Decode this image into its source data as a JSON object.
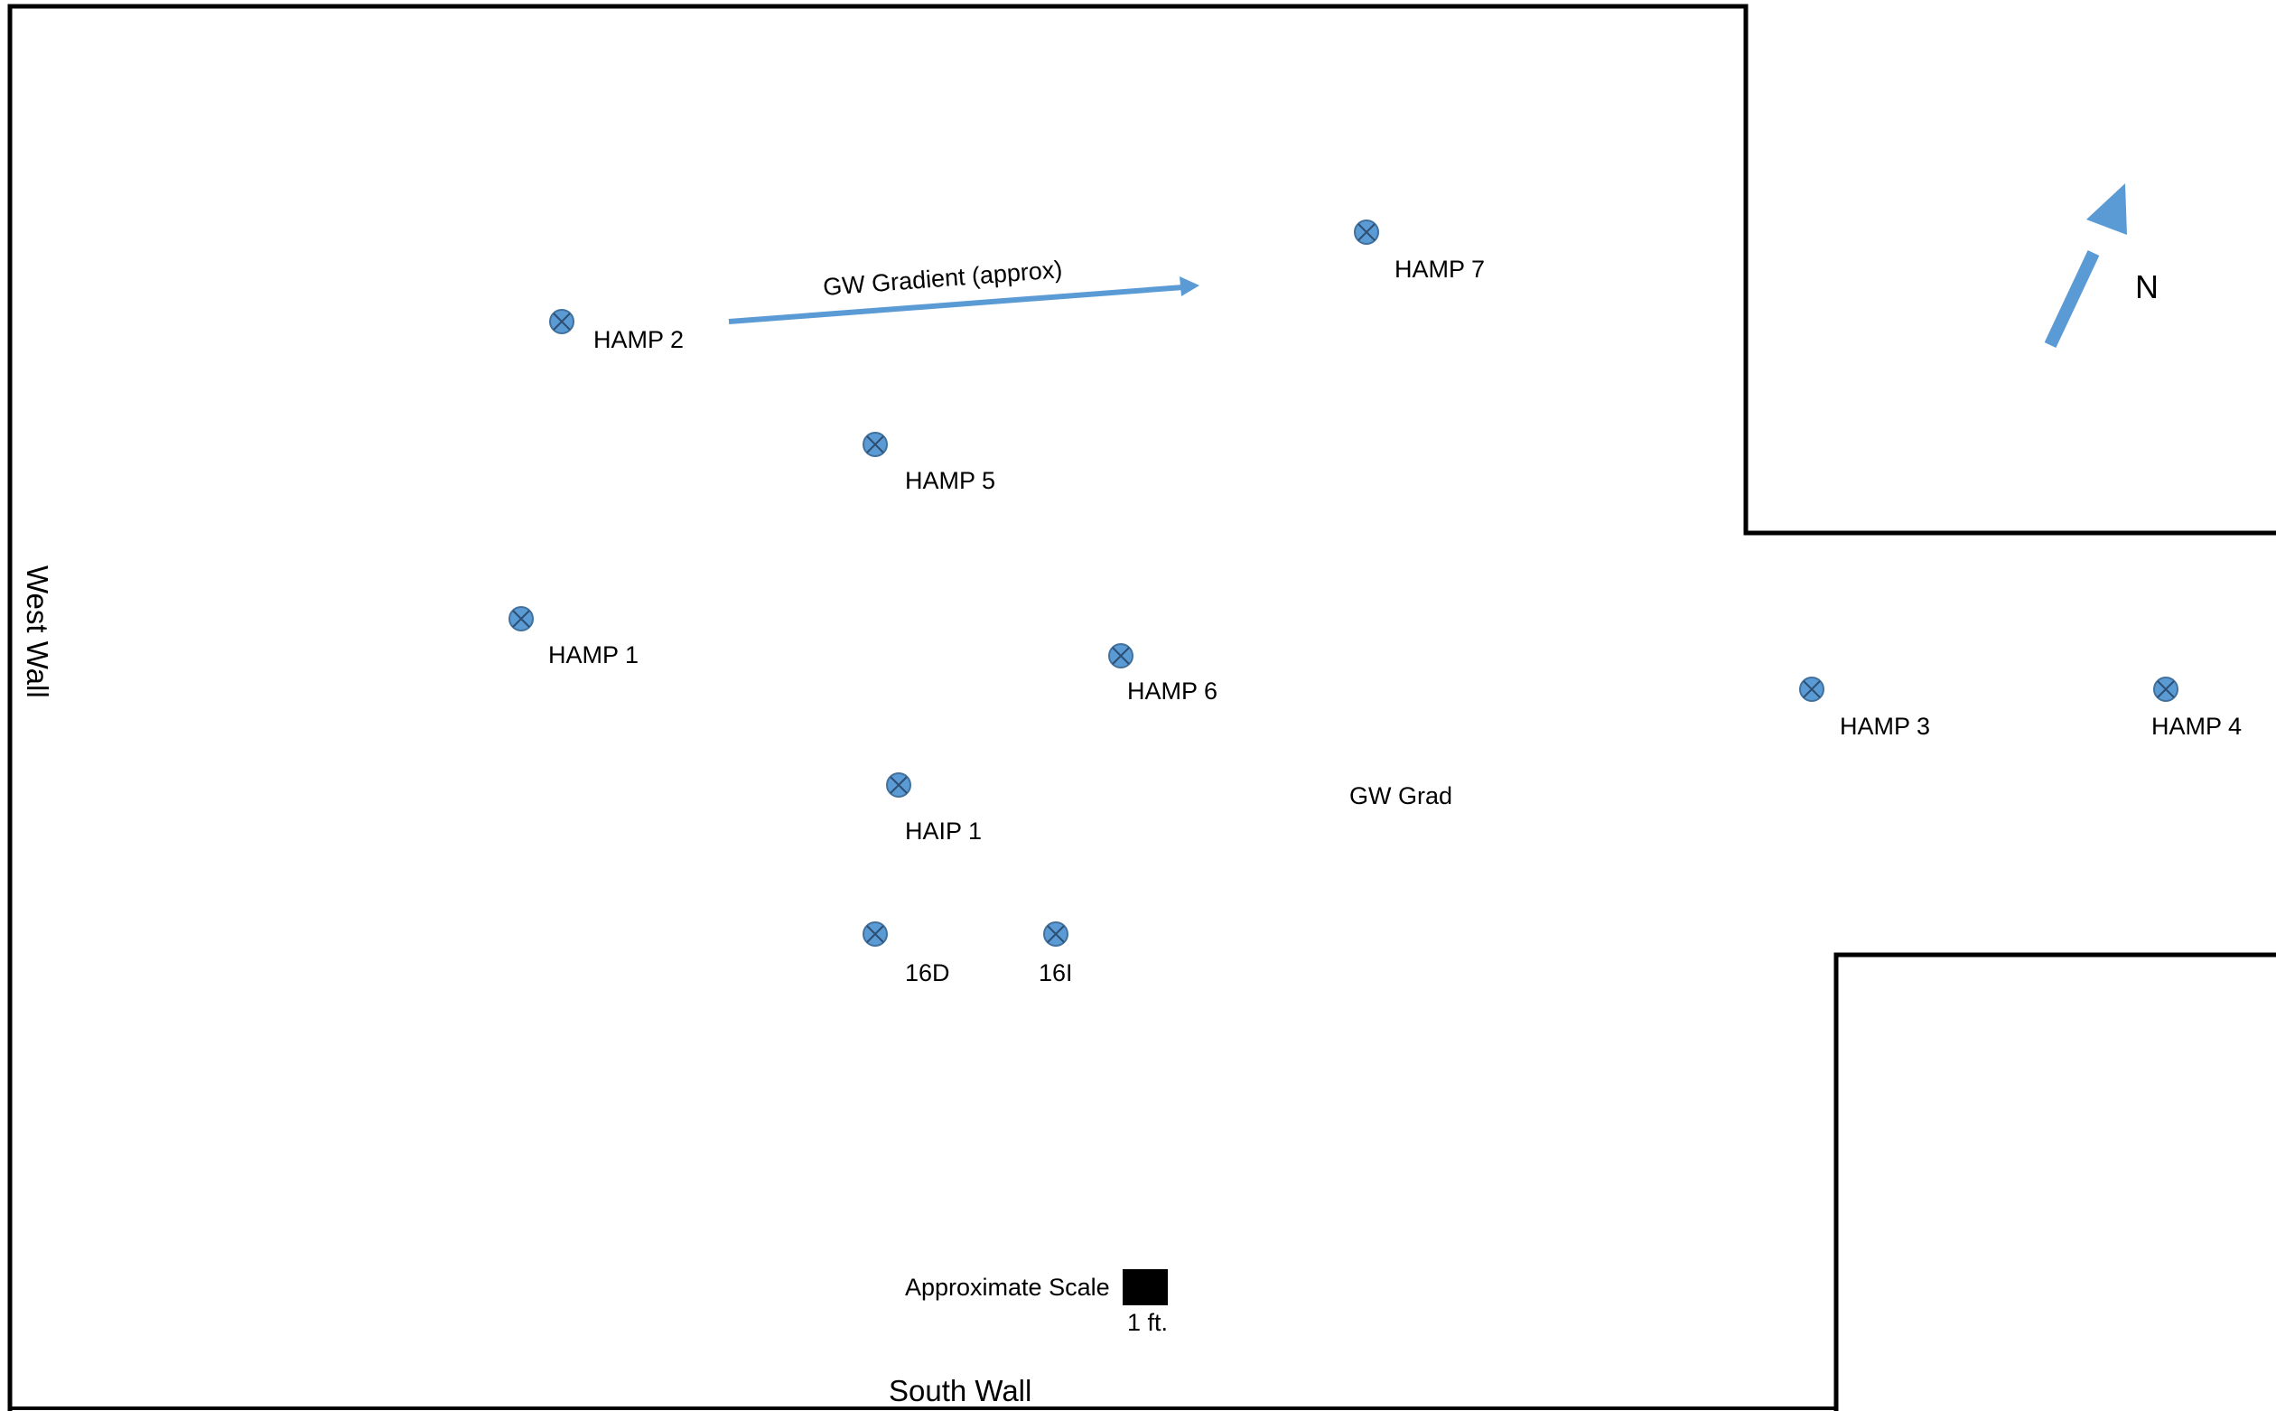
{
  "map": {
    "walls": {
      "west": "West Wall",
      "south": "South Wall"
    },
    "north_label": "N",
    "gradient_arrow_label": "GW Gradient (approx)",
    "gradient_text": "GW Grad",
    "scale": {
      "label": "Approximate Scale",
      "unit": "1 ft."
    },
    "wells": [
      {
        "id": "hamp-2",
        "label": "HAMP 2"
      },
      {
        "id": "hamp-7",
        "label": "HAMP 7"
      },
      {
        "id": "hamp-5",
        "label": "HAMP 5"
      },
      {
        "id": "hamp-1",
        "label": "HAMP 1"
      },
      {
        "id": "hamp-6",
        "label": "HAMP 6"
      },
      {
        "id": "hamp-3",
        "label": "HAMP 3"
      },
      {
        "id": "hamp-4",
        "label": "HAMP 4"
      },
      {
        "id": "haip-1",
        "label": "HAIP 1"
      },
      {
        "id": "16d",
        "label": "16D"
      },
      {
        "id": "16i",
        "label": "16I"
      }
    ],
    "colors": {
      "well_fill": "#5b9bd5",
      "well_stroke": "#41719c",
      "arrow": "#5b9bd5",
      "wall": "#000000",
      "scale_box": "#000000"
    }
  }
}
